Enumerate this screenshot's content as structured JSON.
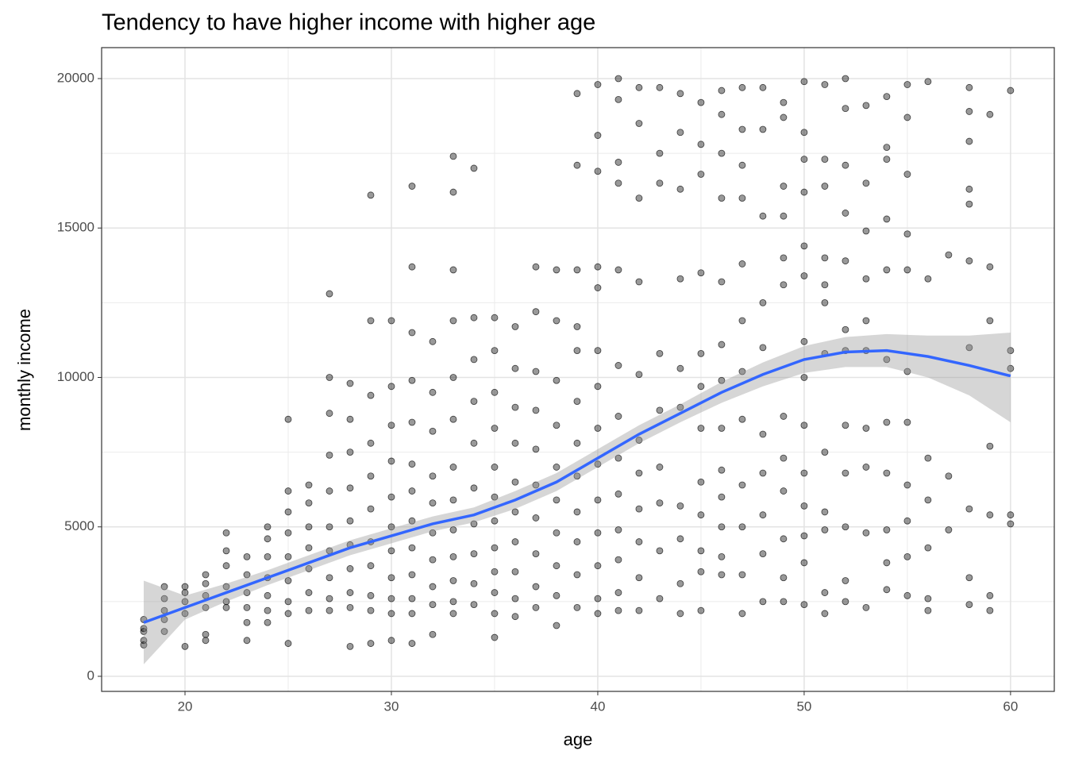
{
  "chart_data": {
    "type": "scatter",
    "title": "Tendency to have higher income with higher age",
    "x_label": "age",
    "y_label": "monthly income",
    "xlim": [
      15.96,
      62.12
    ],
    "ylim": [
      -505,
      21036
    ],
    "xticks": [
      20,
      30,
      40,
      50,
      60
    ],
    "yticks": [
      0,
      5000,
      10000,
      15000,
      20000
    ],
    "x_minor_ticks": [
      25,
      35,
      45,
      55
    ],
    "y_minor_ticks": [
      2500,
      7500,
      12500,
      17500
    ],
    "grid": true,
    "point_color": "#000000",
    "point_opacity": 0.4,
    "points_by_age": [
      {
        "x": 18,
        "values": [
          1900,
          1600,
          1500,
          1200,
          1050
        ]
      },
      {
        "x": 19,
        "values": [
          3000,
          2600,
          2200,
          1900,
          1500
        ]
      },
      {
        "x": 20,
        "values": [
          3000,
          2800,
          2500,
          2100,
          1000
        ]
      },
      {
        "x": 21,
        "values": [
          3400,
          3100,
          2700,
          2300,
          1400,
          1200
        ]
      },
      {
        "x": 22,
        "values": [
          4800,
          4200,
          3700,
          3000,
          2500,
          2300
        ]
      },
      {
        "x": 23,
        "values": [
          4000,
          3400,
          2800,
          2300,
          1800,
          1200
        ]
      },
      {
        "x": 24,
        "values": [
          5000,
          4600,
          4000,
          3300,
          2700,
          2200,
          1800
        ]
      },
      {
        "x": 25,
        "values": [
          8600,
          6200,
          5500,
          4800,
          4000,
          3200,
          2500,
          2100,
          1100
        ]
      },
      {
        "x": 26,
        "values": [
          6400,
          5800,
          5000,
          4300,
          3600,
          2800,
          2200
        ]
      },
      {
        "x": 27,
        "values": [
          12800,
          10000,
          8800,
          7400,
          6200,
          5000,
          4200,
          3300,
          2600,
          2200
        ]
      },
      {
        "x": 28,
        "values": [
          9800,
          8600,
          7500,
          6300,
          5200,
          4400,
          3600,
          2800,
          2300,
          1000
        ]
      },
      {
        "x": 29,
        "values": [
          16100,
          11900,
          9400,
          7800,
          6700,
          5600,
          4500,
          3700,
          2700,
          2200,
          1100
        ]
      },
      {
        "x": 30,
        "values": [
          11900,
          9700,
          8400,
          7200,
          6000,
          5000,
          4200,
          3300,
          2600,
          2100,
          1200
        ]
      },
      {
        "x": 31,
        "values": [
          16400,
          13700,
          11500,
          9900,
          8500,
          7100,
          6200,
          5200,
          4300,
          3400,
          2600,
          2100,
          1100
        ]
      },
      {
        "x": 32,
        "values": [
          11200,
          9500,
          8200,
          6700,
          5800,
          4800,
          3900,
          3000,
          2400,
          1400
        ]
      },
      {
        "x": 33,
        "values": [
          17400,
          16200,
          13600,
          11900,
          10000,
          8600,
          7000,
          5900,
          4900,
          4000,
          3200,
          2500,
          2100
        ]
      },
      {
        "x": 34,
        "values": [
          17000,
          12000,
          10600,
          9200,
          7800,
          6300,
          5100,
          4100,
          3100,
          2400
        ]
      },
      {
        "x": 35,
        "values": [
          12000,
          10900,
          9500,
          8300,
          7000,
          6000,
          5200,
          4300,
          3500,
          2800,
          2100,
          1300
        ]
      },
      {
        "x": 36,
        "values": [
          11700,
          10300,
          9000,
          7800,
          6500,
          5500,
          4500,
          3500,
          2600,
          2000
        ]
      },
      {
        "x": 37,
        "values": [
          13700,
          12200,
          10200,
          8900,
          7600,
          6400,
          5300,
          4100,
          3000,
          2300
        ]
      },
      {
        "x": 38,
        "values": [
          13600,
          11900,
          9900,
          8400,
          7000,
          5900,
          4800,
          3700,
          2700,
          1700
        ]
      },
      {
        "x": 39,
        "values": [
          19500,
          17100,
          13600,
          11700,
          10900,
          9200,
          7800,
          6700,
          5500,
          4500,
          3400,
          2300
        ]
      },
      {
        "x": 40,
        "values": [
          19800,
          18100,
          16900,
          13700,
          13000,
          10900,
          9700,
          8300,
          7100,
          5900,
          4800,
          3700,
          2600,
          2100
        ]
      },
      {
        "x": 41,
        "values": [
          20000,
          19300,
          17200,
          16500,
          13600,
          10400,
          8700,
          7300,
          6100,
          4900,
          3900,
          2800,
          2200
        ]
      },
      {
        "x": 42,
        "values": [
          19700,
          18500,
          16000,
          13200,
          10100,
          7900,
          6800,
          5600,
          4500,
          3300,
          2200
        ]
      },
      {
        "x": 43,
        "values": [
          19700,
          17500,
          16500,
          10800,
          8900,
          7000,
          5800,
          4200,
          2600
        ]
      },
      {
        "x": 44,
        "values": [
          19500,
          18200,
          16300,
          13300,
          10300,
          9000,
          5700,
          4600,
          3100,
          2100
        ]
      },
      {
        "x": 45,
        "values": [
          19200,
          17800,
          16800,
          13500,
          10800,
          9700,
          8300,
          6500,
          5400,
          4200,
          3500,
          2200
        ]
      },
      {
        "x": 46,
        "values": [
          19600,
          18800,
          17500,
          16000,
          13200,
          11100,
          9900,
          8300,
          6900,
          6000,
          5000,
          4000,
          3400
        ]
      },
      {
        "x": 47,
        "values": [
          19700,
          18300,
          17100,
          16000,
          13800,
          11900,
          10200,
          8600,
          6400,
          5000,
          3400,
          2100
        ]
      },
      {
        "x": 48,
        "values": [
          19700,
          18300,
          15400,
          12500,
          11000,
          8100,
          6800,
          5400,
          4100,
          2500
        ]
      },
      {
        "x": 49,
        "values": [
          19200,
          18700,
          16400,
          15400,
          14000,
          13100,
          8700,
          7300,
          6200,
          4600,
          3300,
          2500
        ]
      },
      {
        "x": 50,
        "values": [
          19900,
          18200,
          17300,
          16200,
          14400,
          13400,
          11200,
          10000,
          8400,
          6800,
          5700,
          4700,
          3800,
          2400
        ]
      },
      {
        "x": 51,
        "values": [
          19800,
          17300,
          16400,
          14000,
          13100,
          12500,
          10800,
          7500,
          5500,
          4900,
          2800,
          2100
        ]
      },
      {
        "x": 52,
        "values": [
          20000,
          19000,
          17100,
          15500,
          13900,
          11600,
          10900,
          8400,
          6800,
          5000,
          3200,
          2500
        ]
      },
      {
        "x": 53,
        "values": [
          19100,
          16500,
          14900,
          13300,
          11900,
          10900,
          8300,
          7000,
          4800,
          2300
        ]
      },
      {
        "x": 54,
        "values": [
          19400,
          17700,
          17300,
          15300,
          13600,
          10600,
          8500,
          6800,
          4900,
          3800,
          2900
        ]
      },
      {
        "x": 55,
        "values": [
          19800,
          18700,
          16800,
          14800,
          13600,
          10200,
          8500,
          6400,
          5200,
          4000,
          2700
        ]
      },
      {
        "x": 56,
        "values": [
          19900,
          13300,
          7300,
          5900,
          4300,
          2600,
          2200
        ]
      },
      {
        "x": 57,
        "values": [
          14100,
          6700,
          4900
        ]
      },
      {
        "x": 58,
        "values": [
          19700,
          18900,
          17900,
          16300,
          15800,
          13900,
          11000,
          5600,
          3300,
          2400
        ]
      },
      {
        "x": 59,
        "values": [
          18800,
          13700,
          11900,
          7700,
          5400,
          2700,
          2200
        ]
      },
      {
        "x": 60,
        "values": [
          19600,
          10900,
          10300,
          5400,
          5100
        ]
      }
    ],
    "smooth": {
      "color": "#3366ff",
      "band_color": "#999999",
      "x": [
        18,
        20,
        22,
        24,
        26,
        28,
        30,
        32,
        34,
        36,
        38,
        40,
        42,
        44,
        46,
        48,
        50,
        52,
        54,
        56,
        58,
        60
      ],
      "values": [
        1800,
        2300,
        2800,
        3300,
        3800,
        4300,
        4700,
        5100,
        5400,
        5900,
        6500,
        7300,
        8100,
        8800,
        9500,
        10100,
        10600,
        10850,
        10900,
        10700,
        10400,
        10050
      ],
      "lower": [
        400,
        1900,
        2500,
        3050,
        3550,
        4050,
        4450,
        4850,
        5150,
        5600,
        6200,
        7000,
        7800,
        8500,
        9150,
        9700,
        10150,
        10350,
        10350,
        10000,
        9400,
        8500
      ],
      "upper": [
        3200,
        2700,
        3100,
        3550,
        4050,
        4550,
        4950,
        5350,
        5650,
        6200,
        6800,
        7600,
        8400,
        9100,
        9850,
        10500,
        11050,
        11350,
        11450,
        11400,
        11400,
        11500
      ]
    }
  }
}
